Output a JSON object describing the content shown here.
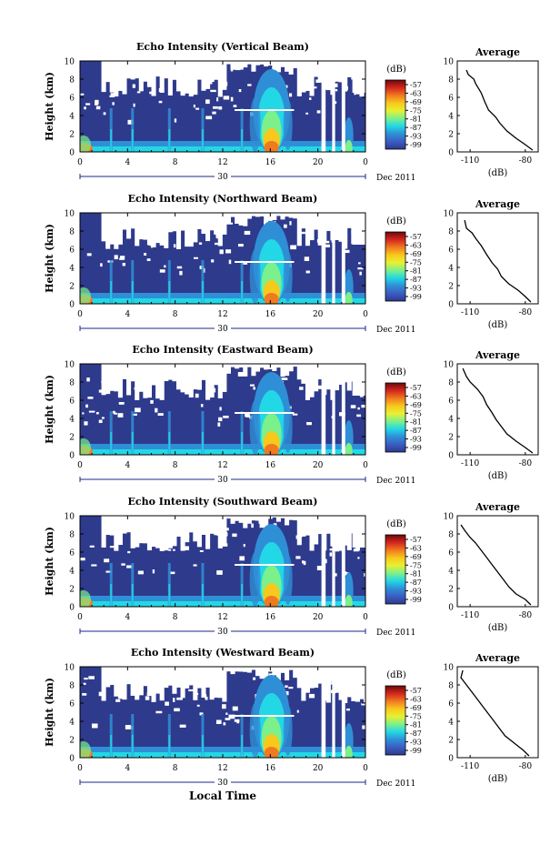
{
  "figure": {
    "xlabel_bottom": "Local Time",
    "date_label": "Dec 2011",
    "day_label": "30",
    "colorbar_unit": "(dB)",
    "colorbar_ticks": [
      "-57",
      "-63",
      "-69",
      "-75",
      "-81",
      "-87",
      "-93",
      "-99"
    ],
    "avg_title": "Average",
    "avg_xlabel": "(dB)",
    "avg_xticks": [
      "-110",
      "-80"
    ],
    "x_ticks": [
      "0",
      "4",
      "8",
      "12",
      "16",
      "20",
      "0"
    ],
    "y_ticks": [
      "0",
      "2",
      "4",
      "6",
      "8",
      "10"
    ],
    "ylabel": "Height (km)"
  },
  "colors": {
    "scale": [
      "#6a0a0a",
      "#d4261e",
      "#f07a20",
      "#f8c81c",
      "#e8f032",
      "#7cf08a",
      "#22d8e6",
      "#2f8fd6",
      "#3a5ec4",
      "#2e3a8c"
    ],
    "background": "#2e3a8c"
  },
  "chart_data": [
    {
      "type": "heatmap",
      "title": "Echo Intensity (Vertical Beam)",
      "xlabel": "",
      "ylabel": "Height (km)",
      "x_range_hours": [
        0,
        24
      ],
      "y_range_km": [
        0,
        10
      ],
      "color_range_db": [
        -99,
        -57
      ],
      "average_profile": {
        "x": [
          -112,
          -111,
          -108,
          -107,
          -104,
          -102,
          -100,
          -96,
          -94,
          -90,
          -85,
          -80,
          -76
        ],
        "y": [
          9,
          8.5,
          8,
          7.5,
          6.5,
          5.5,
          4.6,
          3.8,
          3.2,
          2.3,
          1.5,
          0.8,
          0.2
        ],
        "xlim": [
          -117,
          -73
        ],
        "ylim": [
          0,
          10
        ]
      }
    },
    {
      "type": "heatmap",
      "title": "Echo Intensity (Northward Beam)",
      "xlabel": "",
      "ylabel": "Height (km)",
      "x_range_hours": [
        0,
        24
      ],
      "y_range_km": [
        0,
        10
      ],
      "color_range_db": [
        -99,
        -57
      ],
      "average_profile": {
        "x": [
          -113,
          -112,
          -109,
          -107,
          -104,
          -101,
          -98,
          -95,
          -93,
          -89,
          -84,
          -80,
          -77
        ],
        "y": [
          9.2,
          8.3,
          7.8,
          7.2,
          6.4,
          5.4,
          4.5,
          3.8,
          3.0,
          2.2,
          1.5,
          0.8,
          0.2
        ],
        "xlim": [
          -117,
          -73
        ],
        "ylim": [
          0,
          10
        ]
      }
    },
    {
      "type": "heatmap",
      "title": "Echo Intensity (Eastward Beam)",
      "xlabel": "",
      "ylabel": "Height (km)",
      "x_range_hours": [
        0,
        24
      ],
      "y_range_km": [
        0,
        10
      ],
      "color_range_db": [
        -99,
        -57
      ],
      "average_profile": {
        "x": [
          -114,
          -112,
          -110,
          -106,
          -103,
          -101,
          -98,
          -96,
          -93,
          -90,
          -85,
          -80,
          -76
        ],
        "y": [
          9.5,
          8.6,
          8,
          7.2,
          6.4,
          5.5,
          4.6,
          3.9,
          3.1,
          2.3,
          1.5,
          0.8,
          0.2
        ],
        "xlim": [
          -117,
          -73
        ],
        "ylim": [
          0,
          10
        ]
      }
    },
    {
      "type": "heatmap",
      "title": "Echo Intensity (Southward Beam)",
      "xlabel": "",
      "ylabel": "Height (km)",
      "x_range_hours": [
        0,
        24
      ],
      "y_range_km": [
        0,
        10
      ],
      "color_range_db": [
        -99,
        -57
      ],
      "average_profile": {
        "x": [
          -115,
          -113,
          -110,
          -107,
          -104,
          -101,
          -98,
          -95,
          -92,
          -89,
          -85,
          -80,
          -77
        ],
        "y": [
          9.0,
          8.4,
          7.6,
          7.0,
          6.2,
          5.4,
          4.6,
          3.8,
          3.0,
          2.2,
          1.4,
          0.8,
          0.2
        ],
        "xlim": [
          -117,
          -73
        ],
        "ylim": [
          0,
          10
        ]
      }
    },
    {
      "type": "heatmap",
      "title": "Echo Intensity (Westward Beam)",
      "xlabel": "Local Time",
      "ylabel": "Height (km)",
      "x_range_hours": [
        0,
        24
      ],
      "y_range_km": [
        0,
        10
      ],
      "color_range_db": [
        -99,
        -57
      ],
      "average_profile": {
        "x": [
          -114,
          -115,
          -112,
          -109,
          -106,
          -103,
          -100,
          -97,
          -94,
          -91,
          -86,
          -81,
          -78
        ],
        "y": [
          9.6,
          8.8,
          8,
          7.2,
          6.4,
          5.6,
          4.8,
          4.0,
          3.2,
          2.4,
          1.6,
          0.8,
          0.2
        ],
        "xlim": [
          -117,
          -73
        ],
        "ylim": [
          0,
          10
        ]
      }
    }
  ]
}
